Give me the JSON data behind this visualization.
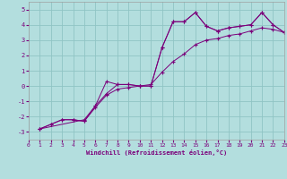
{
  "xlabel": "Windchill (Refroidissement éolien,°C)",
  "bg_color": "#b3dede",
  "grid_color": "#90c4c4",
  "line_color": "#7b007b",
  "xlim": [
    0,
    23
  ],
  "ylim": [
    -3.5,
    5.5
  ],
  "xticks": [
    0,
    1,
    2,
    3,
    4,
    5,
    6,
    7,
    8,
    9,
    10,
    11,
    12,
    13,
    14,
    15,
    16,
    17,
    18,
    19,
    20,
    21,
    22,
    23
  ],
  "yticks": [
    -3,
    -2,
    -1,
    0,
    1,
    2,
    3,
    4,
    5
  ],
  "line1_x": [
    1,
    2,
    3,
    4,
    5,
    6,
    7,
    8,
    9,
    10,
    11,
    12,
    13,
    14,
    15,
    16,
    17,
    18,
    19,
    20,
    21,
    22,
    23
  ],
  "line1_y": [
    -2.8,
    -2.5,
    -2.2,
    -2.2,
    -2.3,
    -1.3,
    0.3,
    0.1,
    0.1,
    0.0,
    0.0,
    2.5,
    4.2,
    4.2,
    4.8,
    3.9,
    3.6,
    3.8,
    3.9,
    4.0,
    4.8,
    4.0,
    3.5
  ],
  "line2_x": [
    1,
    2,
    3,
    4,
    5,
    6,
    7,
    8,
    9,
    10,
    11,
    12,
    13,
    14,
    15,
    16,
    17,
    18,
    19,
    20,
    21,
    22,
    23
  ],
  "line2_y": [
    -2.8,
    -2.5,
    -2.2,
    -2.2,
    -2.3,
    -1.4,
    -0.6,
    -0.2,
    -0.1,
    0.0,
    0.1,
    0.9,
    1.6,
    2.1,
    2.7,
    3.0,
    3.1,
    3.3,
    3.4,
    3.6,
    3.8,
    3.7,
    3.5
  ],
  "line3_x": [
    1,
    5,
    6,
    7,
    8,
    9,
    10,
    11,
    12,
    13,
    14,
    15,
    16,
    17,
    18,
    19,
    20,
    21,
    22,
    23
  ],
  "line3_y": [
    -2.8,
    -2.2,
    -1.3,
    -0.5,
    0.1,
    0.1,
    0.0,
    0.0,
    2.5,
    4.2,
    4.2,
    4.8,
    3.9,
    3.6,
    3.8,
    3.9,
    4.0,
    4.8,
    4.0,
    3.5
  ]
}
